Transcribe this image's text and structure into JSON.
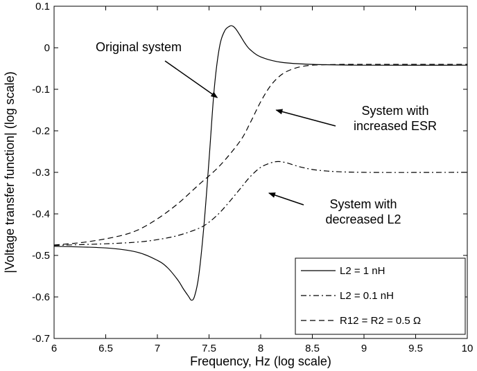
{
  "chart_data": {
    "type": "line",
    "xlabel": "Frequency, Hz (log scale)",
    "ylabel": "|Voltage transfer function| (log scale)",
    "xlim": [
      6,
      10
    ],
    "ylim": [
      -0.7,
      0.1
    ],
    "xticks": [
      "6",
      "6.5",
      "7",
      "7.5",
      "8",
      "8.5",
      "9",
      "9.5",
      "10"
    ],
    "yticks": [
      "0.1",
      "0",
      "-0.1",
      "-0.2",
      "-0.3",
      "-0.4",
      "-0.5",
      "-0.6",
      "-0.7"
    ],
    "grid": false,
    "legend_position": "bottom-right",
    "series": [
      {
        "name": "L2 = 1 nH",
        "style": "solid",
        "x": [
          6.0,
          6.5,
          6.8,
          7.0,
          7.1,
          7.2,
          7.25,
          7.3,
          7.33,
          7.36,
          7.4,
          7.45,
          7.5,
          7.55,
          7.6,
          7.65,
          7.7,
          7.73,
          7.76,
          7.8,
          7.85,
          7.9,
          8.0,
          8.2,
          8.5,
          9.0,
          10.0
        ],
        "y": [
          -0.478,
          -0.482,
          -0.492,
          -0.512,
          -0.53,
          -0.56,
          -0.58,
          -0.598,
          -0.608,
          -0.598,
          -0.55,
          -0.43,
          -0.27,
          -0.1,
          0.0,
          0.04,
          0.052,
          0.052,
          0.045,
          0.03,
          0.01,
          -0.005,
          -0.022,
          -0.035,
          -0.04,
          -0.042,
          -0.042
        ]
      },
      {
        "name": "L2 = 0.1 nH",
        "style": "dashdot",
        "x": [
          6.0,
          6.5,
          6.8,
          7.0,
          7.2,
          7.4,
          7.5,
          7.6,
          7.7,
          7.8,
          7.9,
          8.0,
          8.1,
          8.17,
          8.25,
          8.4,
          8.6,
          9.0,
          10.0
        ],
        "y": [
          -0.476,
          -0.472,
          -0.468,
          -0.462,
          -0.452,
          -0.435,
          -0.42,
          -0.398,
          -0.37,
          -0.34,
          -0.31,
          -0.288,
          -0.277,
          -0.274,
          -0.277,
          -0.288,
          -0.296,
          -0.3,
          -0.3
        ]
      },
      {
        "name": "R12 = R2 = 0.5 Ω",
        "style": "dashed",
        "x": [
          6.0,
          6.3,
          6.6,
          6.8,
          7.0,
          7.2,
          7.4,
          7.6,
          7.8,
          7.9,
          8.0,
          8.1,
          8.2,
          8.3,
          8.4,
          8.5,
          8.6,
          8.8,
          9.0,
          10.0
        ],
        "y": [
          -0.475,
          -0.468,
          -0.455,
          -0.44,
          -0.412,
          -0.375,
          -0.33,
          -0.285,
          -0.225,
          -0.18,
          -0.13,
          -0.09,
          -0.065,
          -0.052,
          -0.045,
          -0.042,
          -0.041,
          -0.04,
          -0.04,
          -0.04
        ]
      }
    ],
    "annotations": [
      {
        "lines": [
          "Original system"
        ],
        "arrow_to": [
          7.58,
          -0.12
        ]
      },
      {
        "lines": [
          "System with",
          "increased ESR"
        ],
        "arrow_to": [
          8.15,
          -0.15
        ]
      },
      {
        "lines": [
          "System with",
          "decreased L2"
        ],
        "arrow_to": [
          8.08,
          -0.35
        ]
      }
    ]
  }
}
